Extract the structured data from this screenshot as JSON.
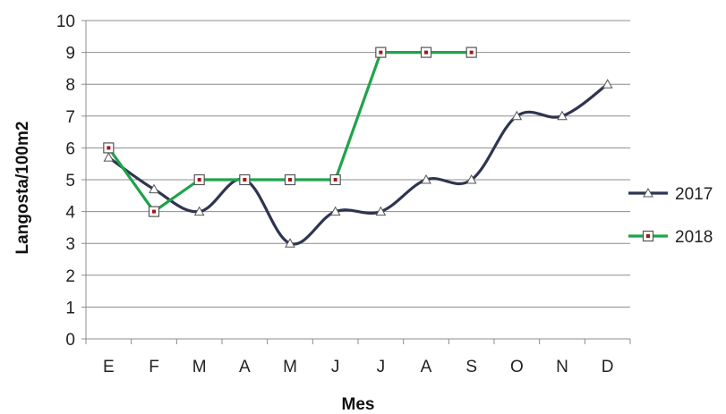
{
  "chart_data": {
    "type": "line",
    "title": "",
    "xlabel": "Mes",
    "ylabel": "Langosta/100m2",
    "categories": [
      "E",
      "F",
      "M",
      "A",
      "M",
      "J",
      "J",
      "A",
      "S",
      "O",
      "N",
      "D"
    ],
    "ylim": [
      0,
      10
    ],
    "yticks": [
      "0",
      "1",
      "2",
      "3",
      "4",
      "5",
      "6",
      "7",
      "8",
      "9",
      "10"
    ],
    "grid": "horizontal",
    "legend_position": "right",
    "series": [
      {
        "name": "2017",
        "color": "#2e3550",
        "marker": "triangle",
        "smooth": true,
        "values": [
          5.7,
          4.7,
          4.0,
          5.0,
          3.0,
          4.0,
          4.0,
          5.0,
          5.0,
          7.0,
          7.0,
          8.0
        ]
      },
      {
        "name": "2018",
        "color": "#1fa34a",
        "marker": "square",
        "smooth": false,
        "values": [
          6.0,
          4.0,
          5.0,
          5.0,
          5.0,
          5.0,
          9.0,
          9.0,
          9.0,
          null,
          null,
          null
        ]
      }
    ]
  }
}
